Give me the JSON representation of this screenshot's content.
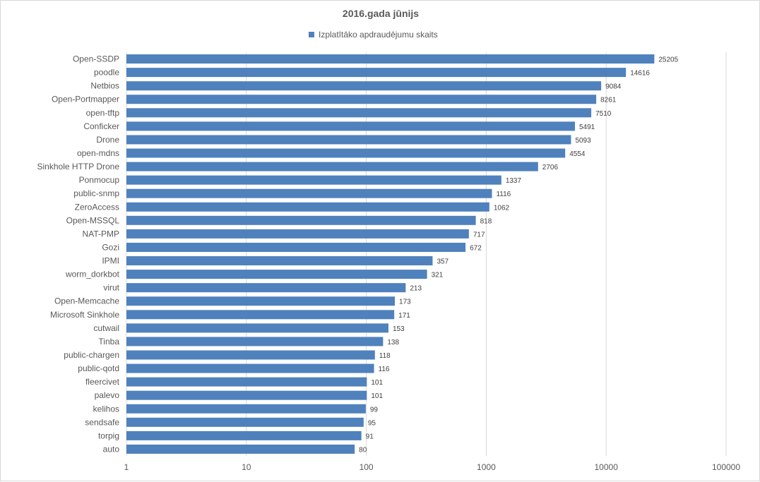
{
  "chart_data": {
    "type": "bar",
    "orientation": "horizontal",
    "title": "2016.gada jūnijs",
    "xlabel": "",
    "ylabel": "",
    "x_scale": "log",
    "xlim": [
      1,
      100000
    ],
    "x_ticks": [
      "1",
      "10",
      "100",
      "1000",
      "10000",
      "100000"
    ],
    "grid": true,
    "legend_position": "top",
    "series": [
      {
        "name": "Izplatītāko apdraudējumu skaits",
        "color": "#4f81bd",
        "values": [
          25205,
          14616,
          9084,
          8261,
          7510,
          5491,
          5093,
          4554,
          2706,
          1337,
          1116,
          1062,
          818,
          717,
          672,
          357,
          321,
          213,
          173,
          171,
          153,
          138,
          118,
          116,
          101,
          101,
          99,
          95,
          91,
          80
        ]
      }
    ],
    "categories": [
      "Open-SSDP",
      "poodle",
      "Netbios",
      "Open-Portmapper",
      "open-tftp",
      "Conficker",
      "Drone",
      "open-mdns",
      "Sinkhole HTTP Drone",
      "Ponmocup",
      "public-snmp",
      "ZeroAccess",
      "Open-MSSQL",
      "NAT-PMP",
      "Gozi",
      "IPMI",
      "worm_dorkbot",
      "virut",
      "Open-Memcache",
      "Microsoft Sinkhole",
      "cutwail",
      "Tinba",
      "public-chargen",
      "public-qotd",
      "fleercivet",
      "palevo",
      "kelihos",
      "sendsafe",
      "torpig",
      "auto"
    ]
  }
}
